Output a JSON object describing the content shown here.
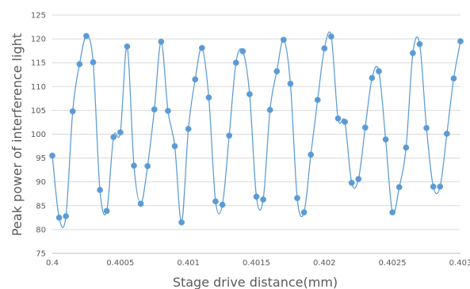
{
  "chart_data": {
    "type": "line",
    "title": "",
    "xlabel": "Stage drive distance(mm)",
    "ylabel": "Peak power of interference light",
    "xlim": [
      0.4,
      0.403
    ],
    "ylim": [
      75,
      125
    ],
    "x_ticks": [
      0.4,
      0.4005,
      0.401,
      0.4015,
      0.402,
      0.4025,
      0.403
    ],
    "x_tick_labels": [
      "0.4",
      "0.4005",
      "0.401",
      "0.4015",
      "0.402",
      "0.4025",
      "0.403"
    ],
    "y_ticks": [
      75,
      80,
      85,
      90,
      95,
      100,
      105,
      110,
      115,
      120,
      125
    ],
    "grid": "horizontal",
    "legend": "none",
    "smooth": true,
    "series_color": "#5b9bd5",
    "series": [
      {
        "x": [
          0.4,
          0.40005,
          0.4001,
          0.40015,
          0.4002,
          0.40025,
          0.4003,
          0.40035,
          0.4004,
          0.40045,
          0.4005,
          0.40055,
          0.4006,
          0.40065,
          0.4007,
          0.40075,
          0.4008,
          0.40085,
          0.4009,
          0.40095,
          0.401,
          0.40105,
          0.4011,
          0.40115,
          0.4012,
          0.40125,
          0.4013,
          0.40135,
          0.4014,
          0.40145,
          0.4015,
          0.40155,
          0.4016,
          0.40165,
          0.4017,
          0.40175,
          0.4018,
          0.40185,
          0.4019,
          0.40195,
          0.402,
          0.40205,
          0.4021,
          0.40215,
          0.4022,
          0.40225,
          0.4023,
          0.40235,
          0.4024,
          0.40245,
          0.4025,
          0.40255,
          0.4026,
          0.40265,
          0.4027,
          0.40275,
          0.4028,
          0.40285,
          0.4029,
          0.40295,
          0.403
        ],
        "values": [
          95.5,
          82.5,
          82.8,
          104.8,
          114.7,
          120.6,
          115.1,
          88.3,
          83.9,
          99.4,
          100.4,
          118.4,
          93.4,
          85.4,
          93.3,
          105.2,
          119.4,
          104.9,
          97.5,
          81.5,
          101.1,
          111.5,
          118.1,
          107.7,
          85.9,
          85.2,
          99.7,
          115.0,
          117.4,
          108.4,
          86.9,
          86.3,
          105.1,
          113.2,
          119.8,
          110.6,
          86.6,
          83.6,
          95.7,
          107.2,
          118.0,
          120.5,
          103.3,
          102.6,
          89.8,
          90.6,
          101.4,
          111.8,
          113.2,
          98.9,
          83.6,
          88.9,
          97.2,
          117.0,
          118.9,
          101.3,
          89.0,
          89.0,
          100.1,
          111.7,
          119.5
        ]
      }
    ]
  }
}
